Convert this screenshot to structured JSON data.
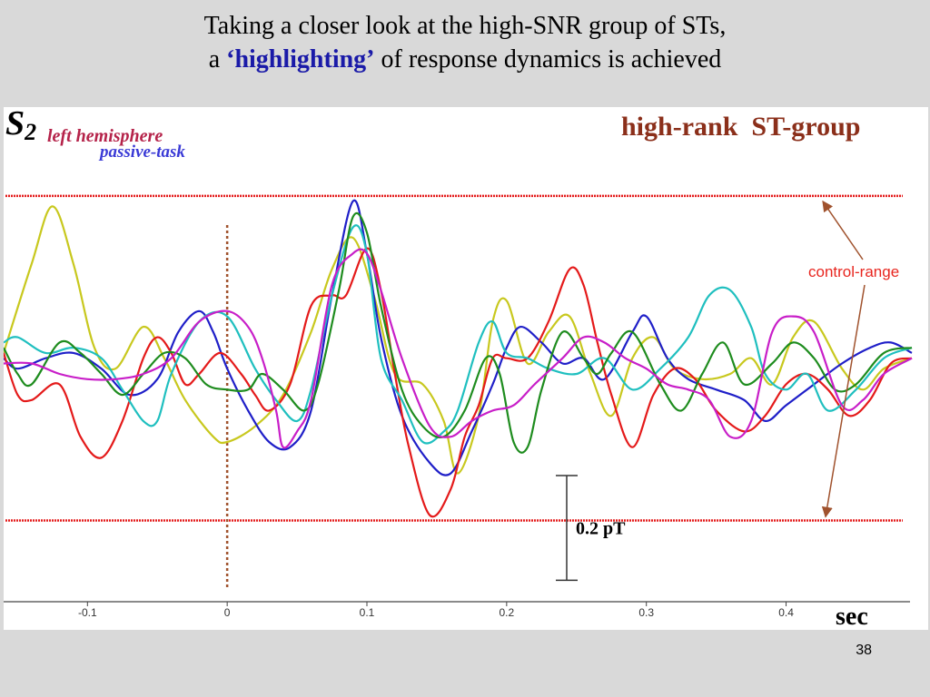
{
  "slide": {
    "title_line1": "Taking a closer look at the high-SNR group of STs,",
    "title_line2_prefix": "a ",
    "title_line2_highlight": "‘highlighting’",
    "title_line2_suffix": " of response dynamics is achieved",
    "page_number": "38"
  },
  "colors": {
    "background": "#d9d9d9",
    "highlight": "#1a1aa8",
    "control_line": "#e41a1a",
    "marker": "#a0522d",
    "label_brown": "#8b2f1a",
    "annotation_red": "#e8261f"
  },
  "chart_data": {
    "type": "line",
    "plot_label": "S",
    "plot_label_subscript": "2",
    "annotation_1": "left hemisphere",
    "annotation_2": "passive-task",
    "group_label": "high-rank  ST-group",
    "control_range_label": "control-range",
    "scale_bar_label": "0.2 pT",
    "xlabel": "sec",
    "xlim": [
      -0.16,
      0.49
    ],
    "ylim": [
      -0.46,
      0.4
    ],
    "x_ticks": [
      {
        "value": -0.1,
        "label": "-0.1"
      },
      {
        "value": 0,
        "label": "0"
      },
      {
        "value": 0.1,
        "label": "0.1"
      },
      {
        "value": 0.2,
        "label": "0.2"
      },
      {
        "value": 0.3,
        "label": "0.3"
      },
      {
        "value": 0.4,
        "label": "0.4"
      }
    ],
    "control_range": [
      -0.31,
      0.31
    ],
    "stimulus_onset": 0,
    "scale_bar_value": 0.2,
    "series": [
      {
        "color": "#c8c81e",
        "points": [
          [
            -0.16,
            0.01
          ],
          [
            -0.14,
            0.18
          ],
          [
            -0.125,
            0.29
          ],
          [
            -0.11,
            0.18
          ],
          [
            -0.095,
            0.02
          ],
          [
            -0.08,
            -0.02
          ],
          [
            -0.06,
            0.06
          ],
          [
            -0.045,
            0.0
          ],
          [
            -0.03,
            -0.08
          ],
          [
            -0.01,
            -0.15
          ],
          [
            0.0,
            -0.16
          ],
          [
            0.02,
            -0.13
          ],
          [
            0.04,
            -0.07
          ],
          [
            0.06,
            0.05
          ],
          [
            0.075,
            0.17
          ],
          [
            0.09,
            0.23
          ],
          [
            0.105,
            0.12
          ],
          [
            0.12,
            -0.03
          ],
          [
            0.14,
            -0.05
          ],
          [
            0.155,
            -0.12
          ],
          [
            0.165,
            -0.22
          ],
          [
            0.18,
            -0.11
          ],
          [
            0.19,
            0.07
          ],
          [
            0.2,
            0.11
          ],
          [
            0.215,
            -0.01
          ],
          [
            0.23,
            0.05
          ],
          [
            0.245,
            0.08
          ],
          [
            0.26,
            -0.03
          ],
          [
            0.275,
            -0.11
          ],
          [
            0.29,
            0.0
          ],
          [
            0.305,
            0.04
          ],
          [
            0.32,
            -0.02
          ],
          [
            0.34,
            -0.04
          ],
          [
            0.36,
            -0.03
          ],
          [
            0.375,
            0.0
          ],
          [
            0.39,
            -0.05
          ],
          [
            0.405,
            0.04
          ],
          [
            0.42,
            0.07
          ],
          [
            0.44,
            -0.02
          ],
          [
            0.455,
            -0.06
          ],
          [
            0.47,
            -0.02
          ],
          [
            0.49,
            0.0
          ]
        ]
      },
      {
        "color": "#1f1fc8",
        "points": [
          [
            -0.16,
            0.0
          ],
          [
            -0.15,
            -0.02
          ],
          [
            -0.13,
            0.0
          ],
          [
            -0.11,
            0.01
          ],
          [
            -0.09,
            -0.02
          ],
          [
            -0.07,
            -0.07
          ],
          [
            -0.05,
            -0.04
          ],
          [
            -0.035,
            0.05
          ],
          [
            -0.02,
            0.09
          ],
          [
            -0.01,
            0.05
          ],
          [
            0.0,
            -0.02
          ],
          [
            0.015,
            -0.1
          ],
          [
            0.03,
            -0.16
          ],
          [
            0.045,
            -0.17
          ],
          [
            0.06,
            -0.1
          ],
          [
            0.075,
            0.12
          ],
          [
            0.09,
            0.3
          ],
          [
            0.1,
            0.2
          ],
          [
            0.11,
            0.04
          ],
          [
            0.125,
            -0.11
          ],
          [
            0.145,
            -0.2
          ],
          [
            0.16,
            -0.22
          ],
          [
            0.175,
            -0.14
          ],
          [
            0.19,
            -0.05
          ],
          [
            0.2,
            0.02
          ],
          [
            0.21,
            0.06
          ],
          [
            0.225,
            0.03
          ],
          [
            0.24,
            -0.01
          ],
          [
            0.255,
            0.0
          ],
          [
            0.27,
            -0.04
          ],
          [
            0.29,
            0.05
          ],
          [
            0.3,
            0.08
          ],
          [
            0.315,
            0.0
          ],
          [
            0.33,
            -0.04
          ],
          [
            0.35,
            -0.06
          ],
          [
            0.37,
            -0.08
          ],
          [
            0.385,
            -0.12
          ],
          [
            0.4,
            -0.09
          ],
          [
            0.42,
            -0.05
          ],
          [
            0.44,
            -0.01
          ],
          [
            0.46,
            0.02
          ],
          [
            0.475,
            0.03
          ],
          [
            0.49,
            0.01
          ]
        ]
      },
      {
        "color": "#e41a1a",
        "points": [
          [
            -0.16,
            0.01
          ],
          [
            -0.15,
            -0.07
          ],
          [
            -0.14,
            -0.08
          ],
          [
            -0.12,
            -0.05
          ],
          [
            -0.105,
            -0.15
          ],
          [
            -0.09,
            -0.19
          ],
          [
            -0.075,
            -0.12
          ],
          [
            -0.06,
            0.0
          ],
          [
            -0.05,
            0.04
          ],
          [
            -0.04,
            0.01
          ],
          [
            -0.03,
            -0.05
          ],
          [
            -0.02,
            -0.03
          ],
          [
            -0.005,
            0.01
          ],
          [
            0.01,
            -0.03
          ],
          [
            0.02,
            -0.07
          ],
          [
            0.03,
            -0.1
          ],
          [
            0.045,
            -0.05
          ],
          [
            0.06,
            0.1
          ],
          [
            0.075,
            0.12
          ],
          [
            0.085,
            0.12
          ],
          [
            0.1,
            0.21
          ],
          [
            0.11,
            0.13
          ],
          [
            0.12,
            -0.03
          ],
          [
            0.13,
            -0.17
          ],
          [
            0.145,
            -0.3
          ],
          [
            0.16,
            -0.25
          ],
          [
            0.17,
            -0.15
          ],
          [
            0.18,
            -0.09
          ],
          [
            0.19,
            0.0
          ],
          [
            0.2,
            0.0
          ],
          [
            0.215,
            0.0
          ],
          [
            0.23,
            0.07
          ],
          [
            0.245,
            0.17
          ],
          [
            0.255,
            0.14
          ],
          [
            0.265,
            0.03
          ],
          [
            0.275,
            -0.07
          ],
          [
            0.29,
            -0.17
          ],
          [
            0.305,
            -0.07
          ],
          [
            0.32,
            -0.02
          ],
          [
            0.335,
            -0.04
          ],
          [
            0.35,
            -0.1
          ],
          [
            0.37,
            -0.14
          ],
          [
            0.385,
            -0.11
          ],
          [
            0.4,
            -0.05
          ],
          [
            0.415,
            -0.03
          ],
          [
            0.43,
            -0.06
          ],
          [
            0.445,
            -0.11
          ],
          [
            0.46,
            -0.08
          ],
          [
            0.475,
            -0.01
          ],
          [
            0.49,
            0.0
          ]
        ]
      },
      {
        "color": "#1fbfbf",
        "points": [
          [
            -0.16,
            0.03
          ],
          [
            -0.15,
            0.04
          ],
          [
            -0.13,
            0.01
          ],
          [
            -0.11,
            0.02
          ],
          [
            -0.09,
            0.0
          ],
          [
            -0.075,
            -0.06
          ],
          [
            -0.06,
            -0.12
          ],
          [
            -0.05,
            -0.12
          ],
          [
            -0.04,
            -0.03
          ],
          [
            -0.02,
            0.07
          ],
          [
            0.0,
            0.08
          ],
          [
            0.02,
            -0.02
          ],
          [
            0.035,
            -0.08
          ],
          [
            0.05,
            -0.12
          ],
          [
            0.06,
            -0.06
          ],
          [
            0.075,
            0.12
          ],
          [
            0.09,
            0.25
          ],
          [
            0.1,
            0.2
          ],
          [
            0.11,
            0.0
          ],
          [
            0.125,
            -0.08
          ],
          [
            0.14,
            -0.16
          ],
          [
            0.155,
            -0.14
          ],
          [
            0.165,
            -0.1
          ],
          [
            0.18,
            0.03
          ],
          [
            0.19,
            0.07
          ],
          [
            0.2,
            0.01
          ],
          [
            0.215,
            0.0
          ],
          [
            0.23,
            -0.02
          ],
          [
            0.25,
            -0.03
          ],
          [
            0.27,
            0.0
          ],
          [
            0.29,
            -0.06
          ],
          [
            0.31,
            -0.02
          ],
          [
            0.33,
            0.04
          ],
          [
            0.345,
            0.12
          ],
          [
            0.36,
            0.13
          ],
          [
            0.375,
            0.06
          ],
          [
            0.385,
            -0.03
          ],
          [
            0.4,
            -0.06
          ],
          [
            0.415,
            -0.03
          ],
          [
            0.43,
            -0.1
          ],
          [
            0.45,
            -0.06
          ],
          [
            0.47,
            0.0
          ],
          [
            0.49,
            0.02
          ]
        ]
      },
      {
        "color": "#1e8c1e",
        "points": [
          [
            -0.16,
            0.02
          ],
          [
            -0.15,
            -0.03
          ],
          [
            -0.14,
            -0.05
          ],
          [
            -0.12,
            0.03
          ],
          [
            -0.105,
            0.01
          ],
          [
            -0.09,
            -0.03
          ],
          [
            -0.075,
            -0.07
          ],
          [
            -0.06,
            -0.03
          ],
          [
            -0.045,
            0.01
          ],
          [
            -0.03,
            0.0
          ],
          [
            -0.015,
            -0.05
          ],
          [
            0.0,
            -0.06
          ],
          [
            0.015,
            -0.06
          ],
          [
            0.025,
            -0.03
          ],
          [
            0.04,
            -0.06
          ],
          [
            0.055,
            -0.1
          ],
          [
            0.065,
            -0.05
          ],
          [
            0.08,
            0.13
          ],
          [
            0.09,
            0.27
          ],
          [
            0.1,
            0.24
          ],
          [
            0.11,
            0.1
          ],
          [
            0.125,
            -0.06
          ],
          [
            0.14,
            -0.13
          ],
          [
            0.155,
            -0.15
          ],
          [
            0.17,
            -0.1
          ],
          [
            0.185,
            0.0
          ],
          [
            0.195,
            -0.03
          ],
          [
            0.205,
            -0.16
          ],
          [
            0.215,
            -0.17
          ],
          [
            0.225,
            -0.06
          ],
          [
            0.24,
            0.05
          ],
          [
            0.255,
            0.0
          ],
          [
            0.265,
            -0.03
          ],
          [
            0.275,
            0.01
          ],
          [
            0.29,
            0.05
          ],
          [
            0.31,
            -0.05
          ],
          [
            0.325,
            -0.1
          ],
          [
            0.34,
            -0.03
          ],
          [
            0.355,
            0.03
          ],
          [
            0.37,
            -0.05
          ],
          [
            0.39,
            -0.01
          ],
          [
            0.405,
            0.03
          ],
          [
            0.42,
            0.0
          ],
          [
            0.435,
            -0.06
          ],
          [
            0.45,
            -0.05
          ],
          [
            0.47,
            0.01
          ],
          [
            0.49,
            0.02
          ]
        ]
      },
      {
        "color": "#c81ec8",
        "points": [
          [
            -0.16,
            -0.01
          ],
          [
            -0.14,
            -0.01
          ],
          [
            -0.12,
            -0.03
          ],
          [
            -0.1,
            -0.04
          ],
          [
            -0.08,
            -0.04
          ],
          [
            -0.06,
            -0.03
          ],
          [
            -0.04,
            0.0
          ],
          [
            -0.02,
            0.07
          ],
          [
            0.0,
            0.09
          ],
          [
            0.015,
            0.06
          ],
          [
            0.025,
            0.0
          ],
          [
            0.035,
            -0.1
          ],
          [
            0.04,
            -0.17
          ],
          [
            0.05,
            -0.14
          ],
          [
            0.06,
            -0.08
          ],
          [
            0.075,
            0.14
          ],
          [
            0.09,
            0.2
          ],
          [
            0.1,
            0.2
          ],
          [
            0.11,
            0.13
          ],
          [
            0.125,
            0.0
          ],
          [
            0.145,
            -0.13
          ],
          [
            0.16,
            -0.15
          ],
          [
            0.175,
            -0.12
          ],
          [
            0.19,
            -0.1
          ],
          [
            0.205,
            -0.09
          ],
          [
            0.22,
            -0.05
          ],
          [
            0.24,
            0.0
          ],
          [
            0.255,
            0.04
          ],
          [
            0.27,
            0.03
          ],
          [
            0.285,
            0.0
          ],
          [
            0.3,
            -0.02
          ],
          [
            0.315,
            -0.05
          ],
          [
            0.33,
            -0.06
          ],
          [
            0.345,
            -0.08
          ],
          [
            0.36,
            -0.15
          ],
          [
            0.375,
            -0.12
          ],
          [
            0.39,
            0.05
          ],
          [
            0.405,
            0.08
          ],
          [
            0.42,
            0.05
          ],
          [
            0.44,
            -0.09
          ],
          [
            0.455,
            -0.08
          ],
          [
            0.47,
            -0.03
          ],
          [
            0.49,
            0.0
          ]
        ]
      }
    ]
  }
}
